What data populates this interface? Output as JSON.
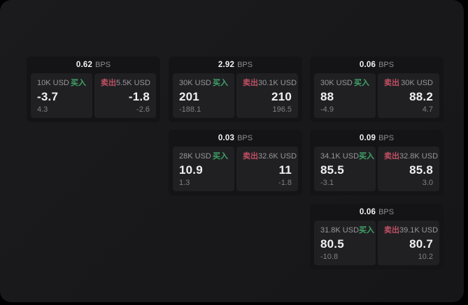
{
  "labels": {
    "bps_suffix": "BPS",
    "buy": "买入",
    "sell": "卖出"
  },
  "colors": {
    "buy": "#3fa368",
    "sell": "#c04f63",
    "surface": "#1b1b1d",
    "card": "#141416",
    "panel": "#202023"
  },
  "cards": [
    {
      "bps": "0.62",
      "buy": {
        "amount": "10K USD",
        "value": "-3.7",
        "delta": "4.3"
      },
      "sell": {
        "amount": "5.5K USD",
        "value": "-1.8",
        "delta": "-2.6"
      }
    },
    {
      "bps": "2.92",
      "buy": {
        "amount": "30K USD",
        "value": "201",
        "delta": "-188.1"
      },
      "sell": {
        "amount": "30.1K USD",
        "value": "210",
        "delta": "196.5"
      }
    },
    {
      "bps": "0.06",
      "buy": {
        "amount": "30K USD",
        "value": "88",
        "delta": "-4.9"
      },
      "sell": {
        "amount": "30K USD",
        "value": "88.2",
        "delta": "4.7"
      }
    },
    {
      "bps": "0.03",
      "buy": {
        "amount": "28K USD",
        "value": "10.9",
        "delta": "1.3"
      },
      "sell": {
        "amount": "32.6K USD",
        "value": "11",
        "delta": "-1.8"
      }
    },
    {
      "bps": "0.09",
      "buy": {
        "amount": "34.1K USD",
        "value": "85.5",
        "delta": "-3.1"
      },
      "sell": {
        "amount": "32.8K USD",
        "value": "85.8",
        "delta": "3.0"
      }
    },
    {
      "bps": "0.06",
      "buy": {
        "amount": "31.8K USD",
        "value": "80.5",
        "delta": "-10.8"
      },
      "sell": {
        "amount": "39.1K USD",
        "value": "80.7",
        "delta": "10.2"
      }
    }
  ]
}
